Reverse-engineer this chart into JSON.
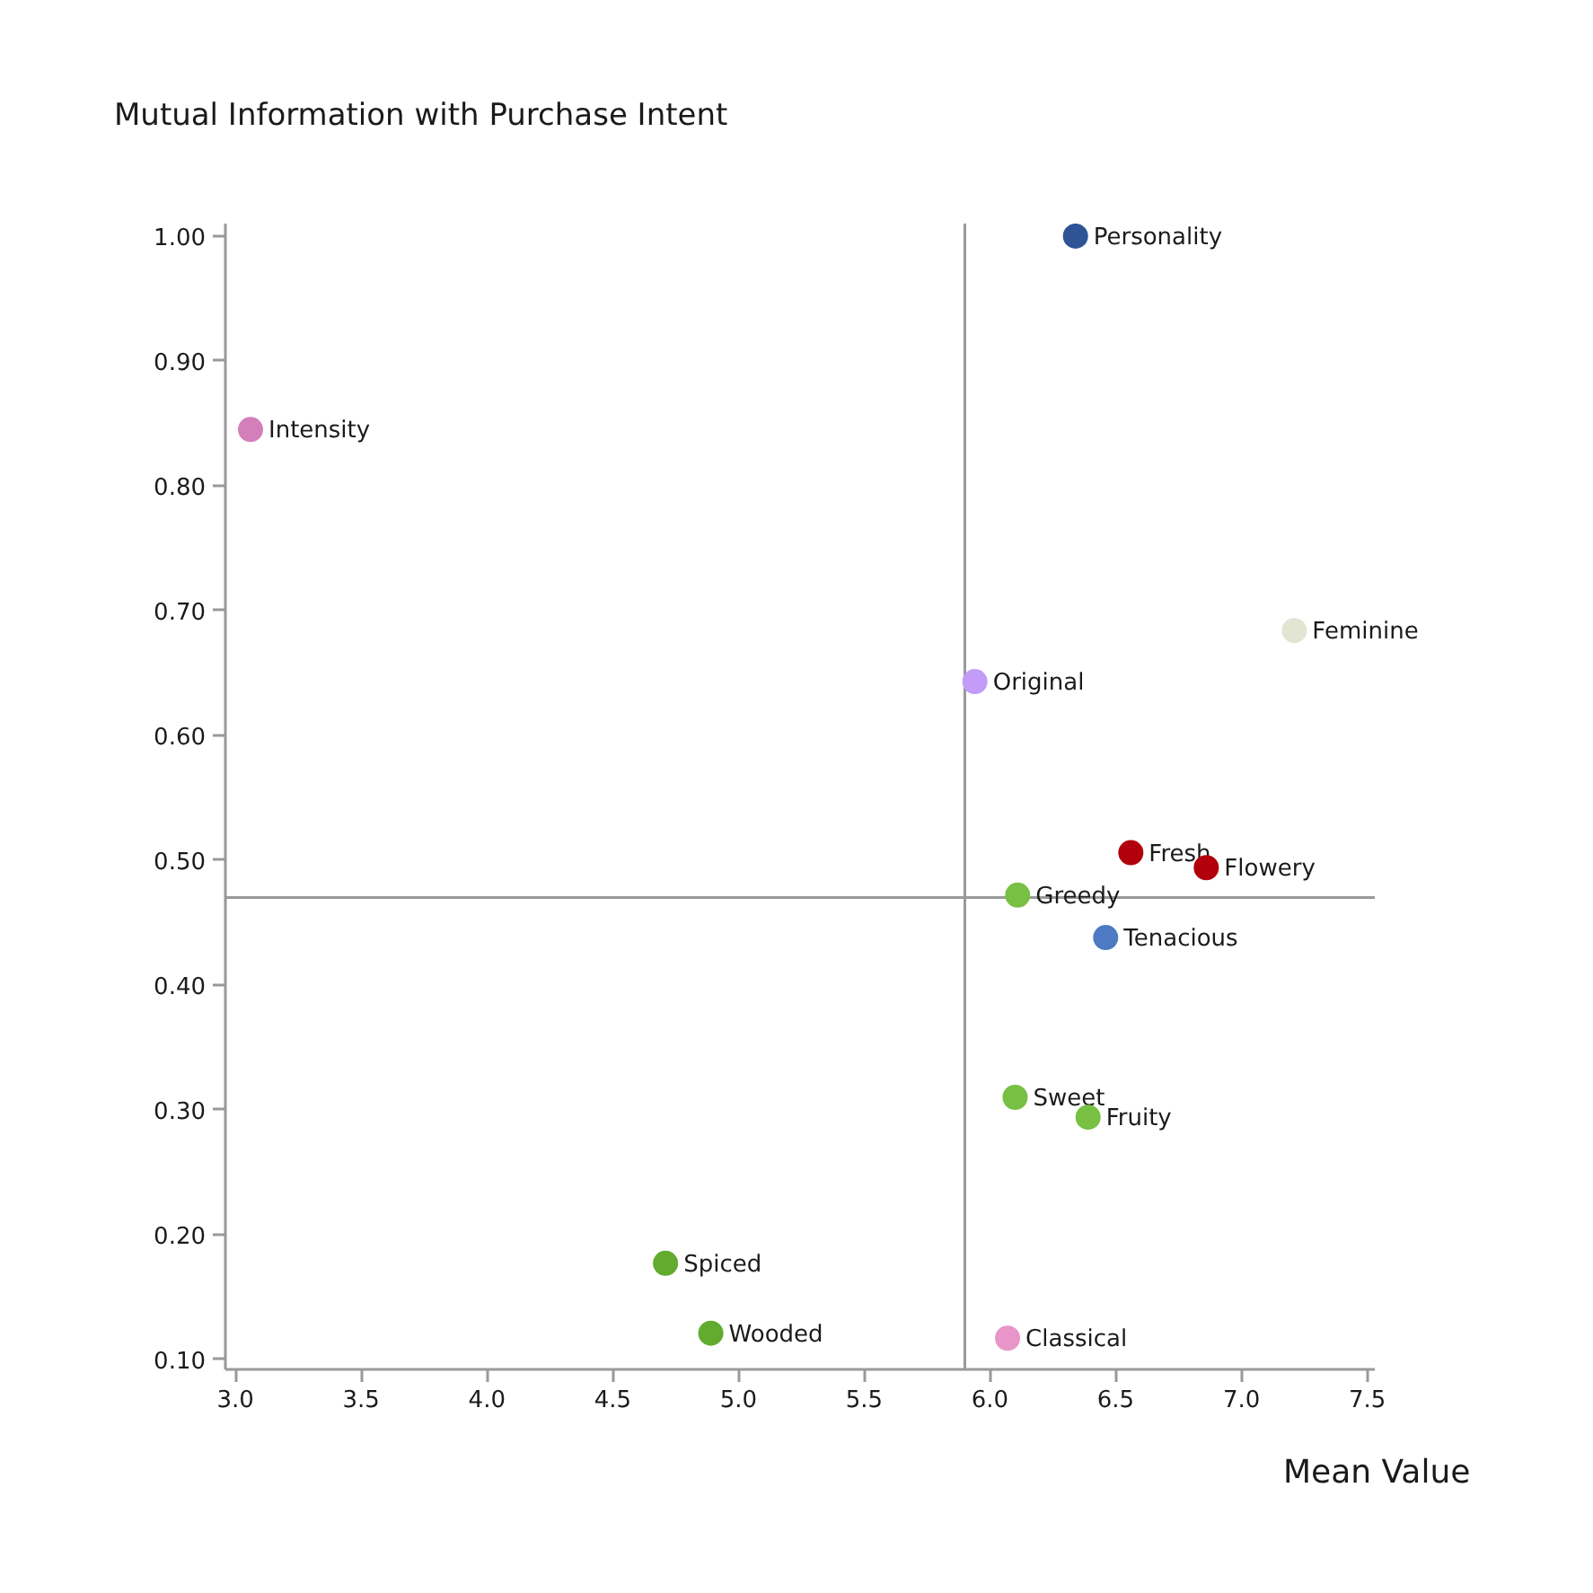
{
  "chart_data": {
    "type": "scatter",
    "ylabel": "Mutual Information with Purchase Intent",
    "xlabel": "Mean Value",
    "xlim": [
      2.96,
      7.53
    ],
    "ylim": [
      0.092,
      1.01
    ],
    "xticks": [
      {
        "value": 3.0,
        "label": "3.0"
      },
      {
        "value": 3.5,
        "label": "3.5"
      },
      {
        "value": 4.0,
        "label": "4.0"
      },
      {
        "value": 4.5,
        "label": "4.5"
      },
      {
        "value": 5.0,
        "label": "5.0"
      },
      {
        "value": 5.5,
        "label": "5.5"
      },
      {
        "value": 6.0,
        "label": "6.0"
      },
      {
        "value": 6.5,
        "label": "6.5"
      },
      {
        "value": 7.0,
        "label": "7.0"
      },
      {
        "value": 7.5,
        "label": "7.5"
      }
    ],
    "yticks": [
      {
        "value": 0.1,
        "label": "0.10"
      },
      {
        "value": 0.2,
        "label": "0.20"
      },
      {
        "value": 0.3,
        "label": "0.30"
      },
      {
        "value": 0.4,
        "label": "0.40"
      },
      {
        "value": 0.5,
        "label": "0.50"
      },
      {
        "value": 0.6,
        "label": "0.60"
      },
      {
        "value": 0.7,
        "label": "0.70"
      },
      {
        "value": 0.8,
        "label": "0.80"
      },
      {
        "value": 0.9,
        "label": "0.90"
      },
      {
        "value": 1.0,
        "label": "1.00"
      }
    ],
    "marker": "circle",
    "ref_lines": [
      {
        "axis": "x",
        "value": 5.9,
        "color": "#999999"
      },
      {
        "axis": "y",
        "value": 0.47,
        "color": "#999999"
      }
    ],
    "series": [
      {
        "name": "Personality",
        "color": "#2e5496",
        "x": [
          6.34
        ],
        "values": [
          1.0
        ]
      },
      {
        "name": "Intensity",
        "color": "#d57fba",
        "x": [
          3.06
        ],
        "values": [
          0.845
        ]
      },
      {
        "name": "Feminine",
        "color": "#e3e5d3",
        "x": [
          7.21
        ],
        "values": [
          0.684
        ]
      },
      {
        "name": "Original",
        "color": "#c29cf7",
        "x": [
          5.94
        ],
        "values": [
          0.643
        ]
      },
      {
        "name": "Fresh",
        "color": "#b2000c",
        "x": [
          6.56
        ],
        "values": [
          0.506
        ]
      },
      {
        "name": "Flowery",
        "color": "#b2000c",
        "x": [
          6.86
        ],
        "values": [
          0.494
        ]
      },
      {
        "name": "Greedy",
        "color": "#77c043",
        "x": [
          6.11
        ],
        "values": [
          0.472
        ]
      },
      {
        "name": "Tenacious",
        "color": "#4d7ac3",
        "x": [
          6.46
        ],
        "values": [
          0.438
        ]
      },
      {
        "name": "Sweet",
        "color": "#77c043",
        "x": [
          6.1
        ],
        "values": [
          0.31
        ]
      },
      {
        "name": "Fruity",
        "color": "#77c043",
        "x": [
          6.39
        ],
        "values": [
          0.294
        ]
      },
      {
        "name": "Spiced",
        "color": "#62ab2e",
        "x": [
          4.71
        ],
        "values": [
          0.177
        ]
      },
      {
        "name": "Wooded",
        "color": "#62ab2e",
        "x": [
          4.89
        ],
        "values": [
          0.121
        ]
      },
      {
        "name": "Classical",
        "color": "#e895c9",
        "x": [
          6.07
        ],
        "values": [
          0.117
        ]
      }
    ]
  }
}
